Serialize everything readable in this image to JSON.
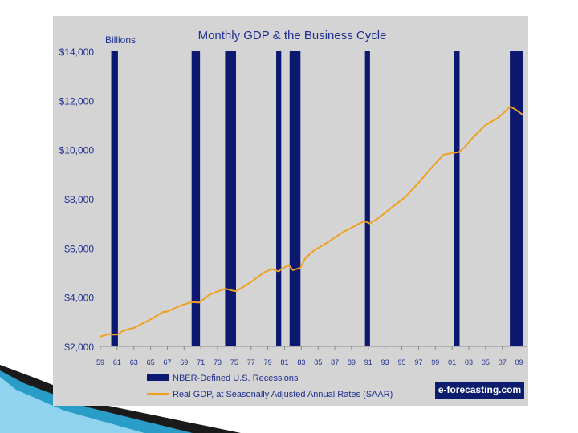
{
  "source_badge": "e-forecasting.com",
  "colors": {
    "panel_bg": "#d4d4d4",
    "recession_fill": "#0c1870",
    "gdp_line": "#f0a020",
    "text": "#1f2f8f",
    "badge_bg": "#0c1d6e"
  },
  "chart_data": {
    "type": "line",
    "title": "Monthly GDP & the Business Cycle",
    "ylabel": "Billions",
    "xlabel": "",
    "ylim": [
      2000,
      14000
    ],
    "xlim": [
      1959,
      2010
    ],
    "yticks": [
      2000,
      4000,
      6000,
      8000,
      10000,
      12000,
      14000
    ],
    "ytick_labels": [
      "$2,000",
      "$4,000",
      "$6,000",
      "$8,000",
      "$10,000",
      "$12,000",
      "$14,000"
    ],
    "xtick_labels": [
      "59",
      "61",
      "63",
      "65",
      "67",
      "69",
      "71",
      "73",
      "75",
      "77",
      "79",
      "81",
      "83",
      "85",
      "87",
      "89",
      "91",
      "93",
      "95",
      "97",
      "99",
      "01",
      "03",
      "05",
      "07",
      "09"
    ],
    "legend_position": "bottom",
    "series": [
      {
        "name": "Real GDP, at Seasonally Adjusted Annual Rates (SAAR)",
        "type": "line",
        "x": [
          1959.0,
          1960.0,
          1960.5,
          1961.0,
          1961.8,
          1963.0,
          1965.0,
          1966.5,
          1967.0,
          1968.5,
          1969.9,
          1970.8,
          1972.0,
          1973.9,
          1975.0,
          1975.2,
          1976.5,
          1977.5,
          1978.5,
          1979.5,
          1980.3,
          1980.6,
          1981.5,
          1982.0,
          1982.9,
          1983.5,
          1984.5,
          1986.0,
          1988.0,
          1990.5,
          1991.2,
          1992.5,
          1994.0,
          1995.5,
          1997.0,
          1998.5,
          2000.0,
          2000.8,
          2001.8,
          2002.5,
          2003.5,
          2005.0,
          2006.5,
          2007.5,
          2007.9,
          2008.5,
          2009.5
        ],
        "y": [
          2400,
          2500,
          2480,
          2480,
          2650,
          2750,
          3100,
          3400,
          3420,
          3650,
          3800,
          3780,
          4100,
          4350,
          4250,
          4250,
          4500,
          4750,
          5000,
          5150,
          5050,
          5150,
          5300,
          5100,
          5200,
          5600,
          5900,
          6200,
          6650,
          7100,
          7000,
          7300,
          7700,
          8100,
          8650,
          9250,
          9800,
          9850,
          9900,
          10100,
          10500,
          11000,
          11300,
          11600,
          11750,
          11650,
          11400
        ]
      },
      {
        "name": "NBER-Defined U.S. Recessions",
        "type": "bar",
        "periods": [
          [
            1960.3,
            1961.1
          ],
          [
            1969.9,
            1970.9
          ],
          [
            1973.9,
            1975.2
          ],
          [
            1980.0,
            1980.6
          ],
          [
            1981.6,
            1982.9
          ],
          [
            1990.6,
            1991.2
          ],
          [
            2001.2,
            2001.9
          ],
          [
            2007.9,
            2009.5
          ]
        ]
      }
    ]
  }
}
